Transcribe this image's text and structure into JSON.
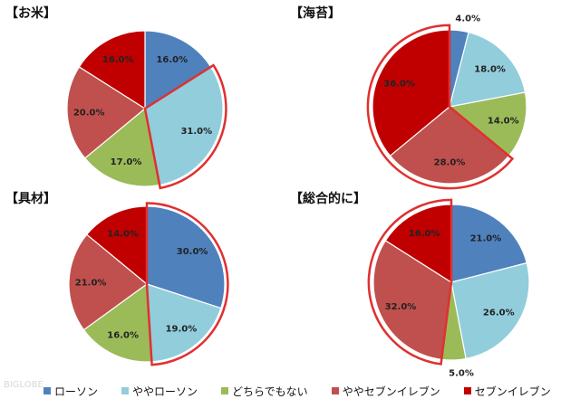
{
  "chart_data": [
    {
      "type": "pie",
      "title": "【お米】",
      "categories": [
        "ローソン",
        "ややローソン",
        "どちらでもない",
        "ややセブンイレブン",
        "セブンイレブン"
      ],
      "values": [
        16.0,
        31.0,
        17.0,
        20.0,
        16.0
      ],
      "labels": [
        "16.0%",
        "31.0%",
        "17.0%",
        "20.0%",
        "16.0%"
      ]
    },
    {
      "type": "pie",
      "title": "【海苔】",
      "categories": [
        "ローソン",
        "ややローソン",
        "どちらでもない",
        "ややセブンイレブン",
        "セブンイレブン"
      ],
      "values": [
        4.0,
        18.0,
        14.0,
        28.0,
        36.0
      ],
      "labels": [
        "4.0%",
        "18.0%",
        "14.0%",
        "28.0%",
        "36.0%"
      ]
    },
    {
      "type": "pie",
      "title": "【具材】",
      "categories": [
        "ローソン",
        "ややローソン",
        "どちらでもない",
        "ややセブンイレブン",
        "セブンイレブン"
      ],
      "values": [
        30.0,
        19.0,
        16.0,
        21.0,
        14.0
      ],
      "labels": [
        "30.0%",
        "19.0%",
        "16.0%",
        "21.0%",
        "14.0%"
      ]
    },
    {
      "type": "pie",
      "title": "【総合的に】",
      "categories": [
        "ローソン",
        "ややローソン",
        "どちらでもない",
        "ややセブンイレブン",
        "セブンイレブン"
      ],
      "values": [
        21.0,
        26.0,
        5.0,
        32.0,
        16.0
      ],
      "labels": [
        "21.0%",
        "26.0%",
        "5.0%",
        "32.0%",
        "16.0%"
      ]
    }
  ],
  "legend": {
    "items": [
      {
        "label": "ローソン",
        "color": "#4f81bd"
      },
      {
        "label": "ややローソン",
        "color": "#92cddc"
      },
      {
        "label": "どちらでもない",
        "color": "#9bbb59"
      },
      {
        "label": "ややセブンイレブン",
        "color": "#c0504d"
      },
      {
        "label": "セブンイレブン",
        "color": "#c00000"
      }
    ]
  },
  "highlight_color": "#e03030",
  "watermark": "BIGLOBE"
}
